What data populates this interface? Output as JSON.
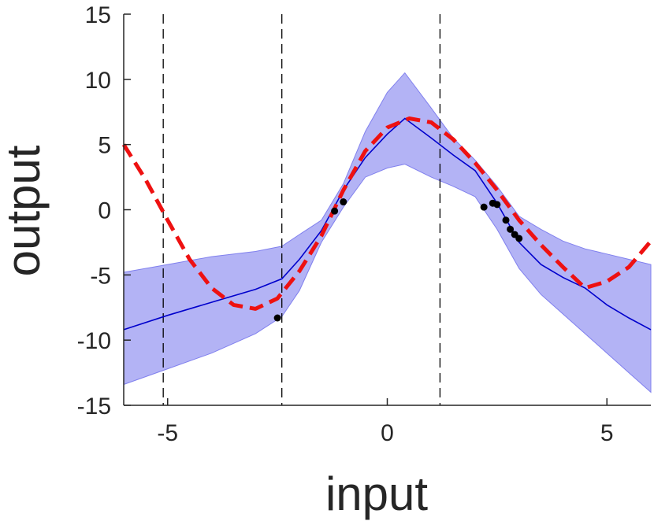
{
  "chart_data": {
    "type": "line",
    "title": "",
    "xlabel": "input",
    "ylabel": "output",
    "xlim": [
      -6,
      6
    ],
    "ylim": [
      -15,
      15
    ],
    "xticks": [
      -5,
      0,
      5
    ],
    "yticks": [
      15,
      10,
      5,
      0,
      -5,
      -10,
      -15
    ],
    "xtick_labels": [
      "-5",
      "0",
      "5"
    ],
    "ytick_labels": [
      "15",
      "10",
      "5",
      "0",
      "-5",
      "-10",
      "-15"
    ],
    "grid": false,
    "colors": {
      "mean": "#0000cc",
      "band_fill": "#b3b3f5",
      "band_edge": "#8080ee",
      "dashed_curve": "#ee1111",
      "markers": "#000000",
      "vlines": "#000000",
      "axes": "#262626"
    },
    "vertical_lines": [
      -5.1,
      -2.4,
      1.2
    ],
    "series": [
      {
        "kind": "band",
        "x": [
          -6,
          -5,
          -4,
          -3,
          -2.4,
          -2,
          -1.5,
          -1,
          -0.5,
          0,
          0.4,
          1,
          1.5,
          2,
          2.5,
          3,
          3.5,
          4,
          4.5,
          5,
          5.5,
          6
        ],
        "upper": [
          -4.8,
          -4.2,
          -3.6,
          -3.2,
          -2.8,
          -1.9,
          -0.8,
          2.0,
          6.0,
          9.0,
          10.5,
          7.8,
          5.5,
          3.8,
          1.8,
          -0.5,
          -1.5,
          -2.4,
          -3.0,
          -3.4,
          -3.8,
          -4.2
        ],
        "lower": [
          -13.4,
          -12.2,
          -11.0,
          -9.5,
          -8.2,
          -6.2,
          -2.5,
          0.2,
          2.5,
          3.2,
          3.5,
          2.5,
          1.8,
          1.0,
          -1.5,
          -4.5,
          -6.5,
          -8.0,
          -9.5,
          -11.0,
          -12.5,
          -14.0
        ]
      },
      {
        "kind": "mean",
        "x": [
          -6,
          -5,
          -4,
          -3,
          -2.4,
          -2,
          -1.5,
          -1,
          -0.5,
          0,
          0.4,
          1,
          1.5,
          2,
          2.5,
          3,
          3.5,
          4,
          4.5,
          5,
          5.5,
          6
        ],
        "y": [
          -9.2,
          -8.1,
          -7.1,
          -6.1,
          -5.3,
          -3.8,
          -1.6,
          1.5,
          4.0,
          5.8,
          7.0,
          5.5,
          4.2,
          3.0,
          0.5,
          -2.5,
          -4.2,
          -5.2,
          -6.0,
          -7.3,
          -8.3,
          -9.2
        ]
      },
      {
        "kind": "dashed",
        "x": [
          -6,
          -5.5,
          -5,
          -4.5,
          -4,
          -3.5,
          -3,
          -2.5,
          -2,
          -1.5,
          -1,
          -0.5,
          0,
          0.5,
          1,
          1.5,
          2,
          2.5,
          3,
          3.5,
          4,
          4.5,
          5,
          5.5,
          6
        ],
        "y": [
          5.0,
          2.3,
          -0.8,
          -3.8,
          -6.0,
          -7.3,
          -7.6,
          -6.8,
          -4.7,
          -2.0,
          1.5,
          4.5,
          6.3,
          7.0,
          6.7,
          5.4,
          3.6,
          1.5,
          -0.8,
          -2.7,
          -4.4,
          -6.0,
          -5.5,
          -4.4,
          -2.4
        ]
      },
      {
        "kind": "points",
        "x": [
          -2.5,
          -1.2,
          -1.0,
          2.2,
          2.4,
          2.5,
          2.7,
          2.8,
          2.9,
          3.0
        ],
        "y": [
          -8.3,
          -0.1,
          0.6,
          0.2,
          0.5,
          0.4,
          -0.8,
          -1.5,
          -1.9,
          -2.2
        ]
      }
    ]
  }
}
